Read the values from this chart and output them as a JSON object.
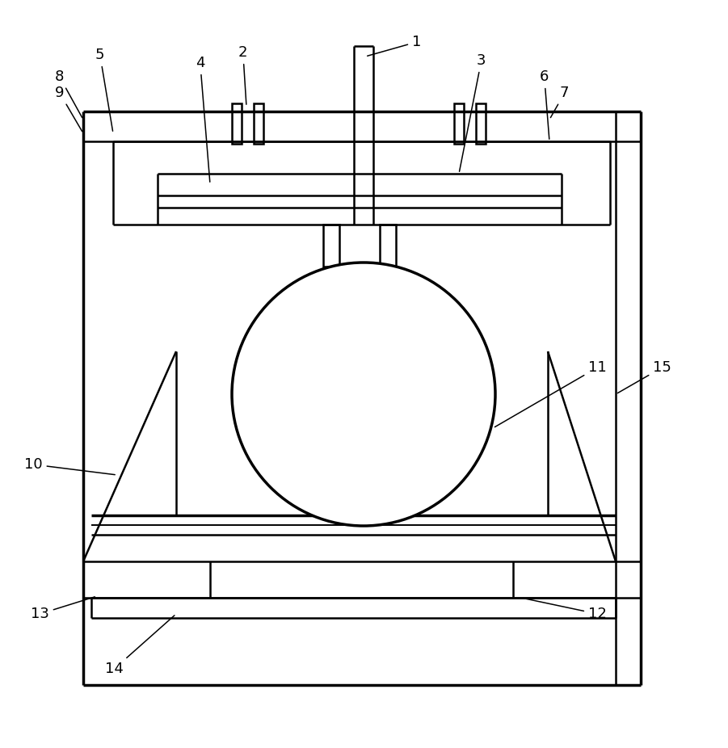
{
  "bg_color": "#ffffff",
  "line_color": "#000000",
  "lw_thick": 2.5,
  "lw_med": 1.8,
  "lw_thin": 1.2,
  "fig_width": 9.01,
  "fig_height": 9.26
}
